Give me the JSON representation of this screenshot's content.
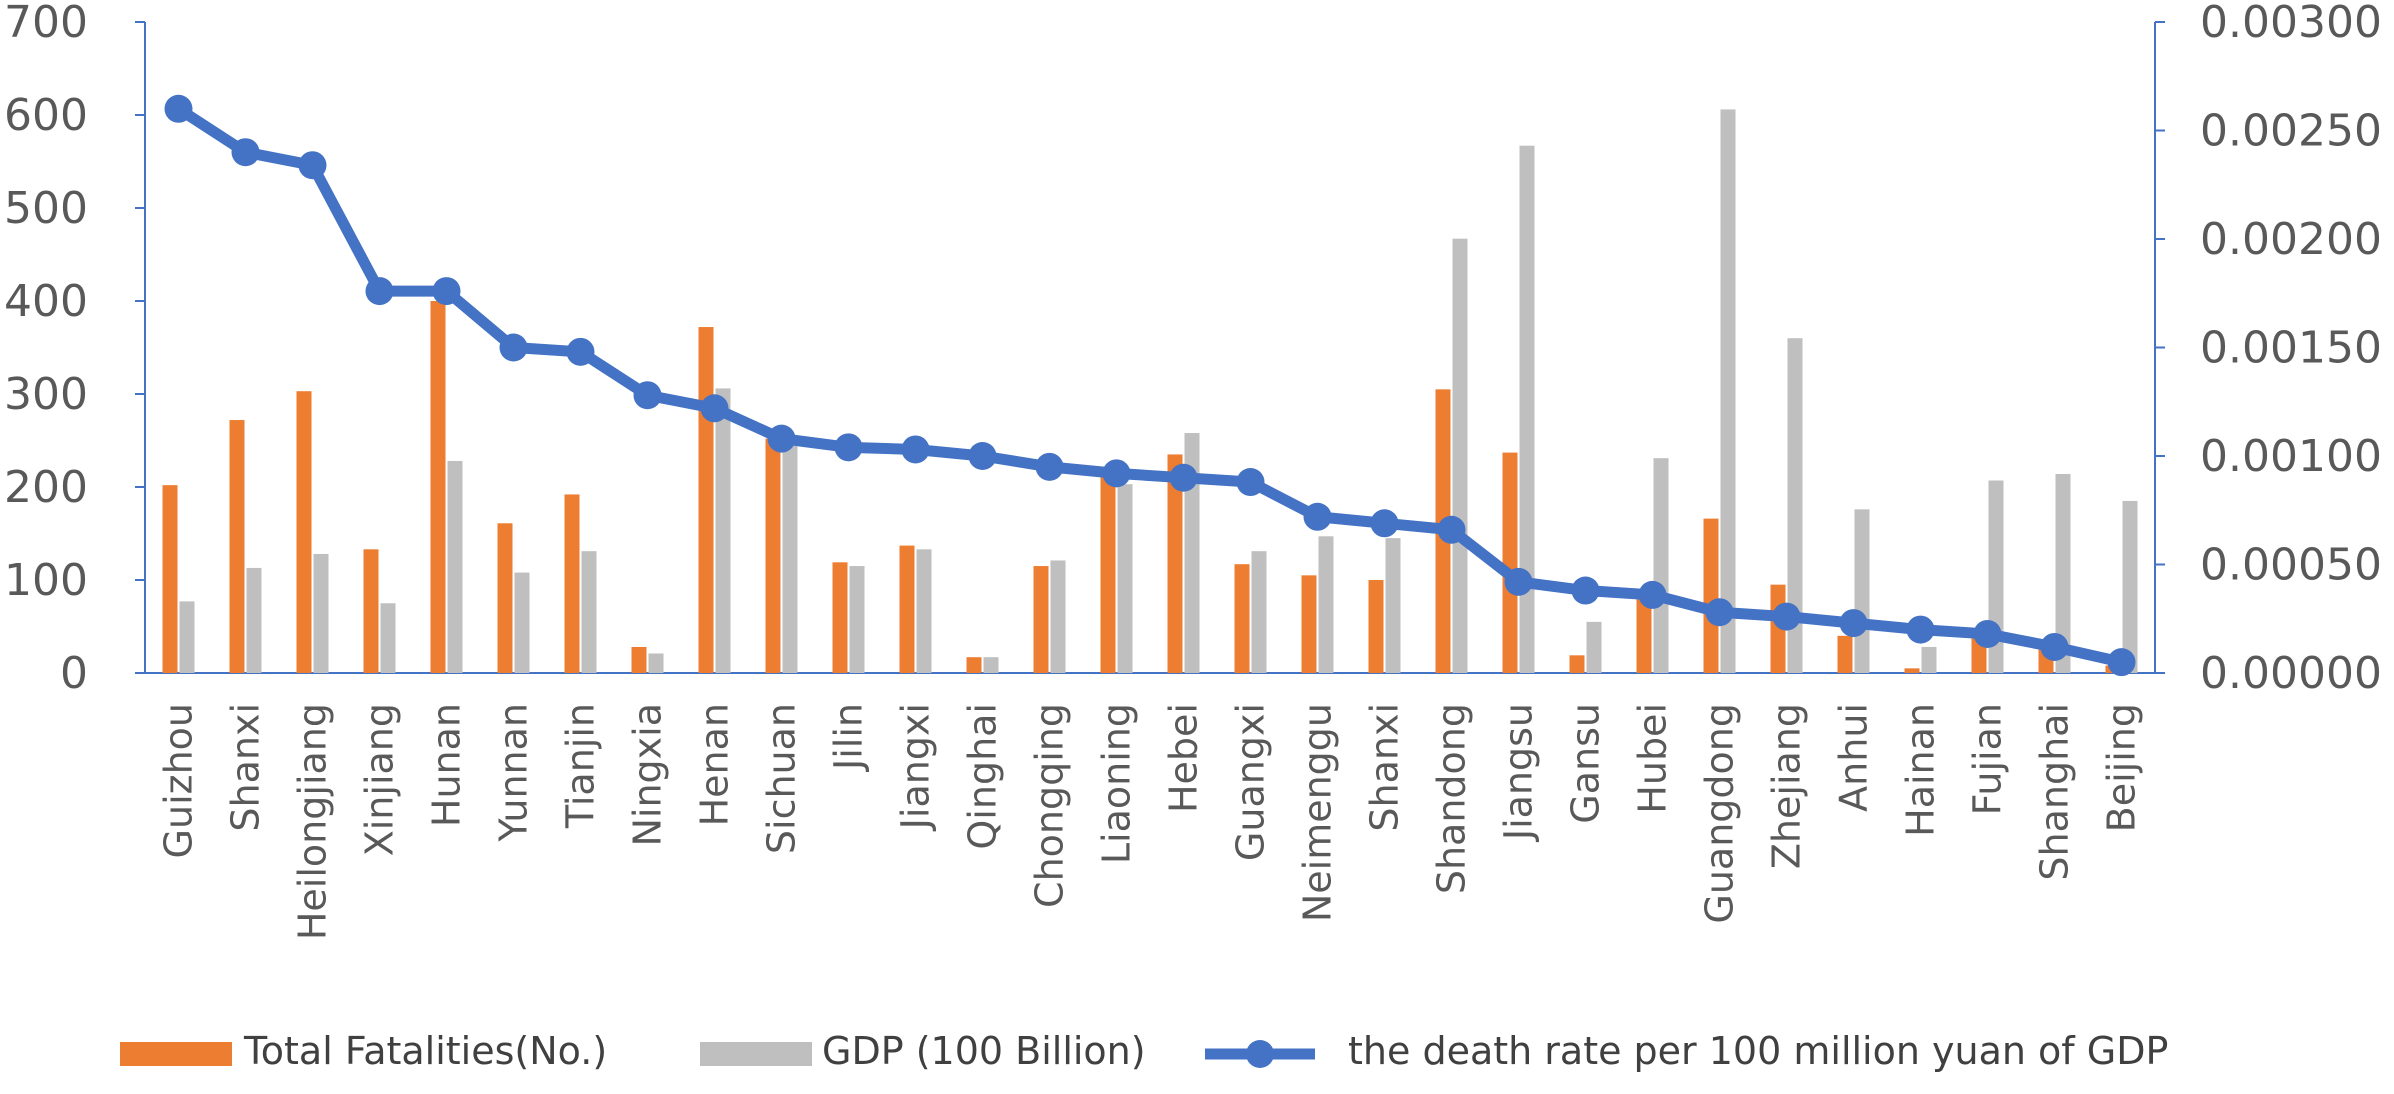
{
  "chart_data": {
    "type": "bar",
    "categories": [
      "Guizhou",
      "Shanxi",
      "Heilongjiang",
      "Xinjiang",
      "Hunan",
      "Yunnan",
      "Tianjin",
      "Ningxia",
      "Henan",
      "Sichuan",
      "Jilin",
      "Jiangxi",
      "Qinghai",
      "Chongqing",
      "Liaoning",
      "Hebei",
      "Guangxi",
      "Neimenggu",
      "Shanxi",
      "Shandong",
      "Jiangsu",
      "Gansu",
      "Hubei",
      "Guangdong",
      "Zhejiang",
      "Anhui",
      "Hainan",
      "Fujian",
      "Shanghai",
      "Beijing"
    ],
    "series": [
      {
        "name": "Total Fatalities(No.)",
        "type": "bar",
        "axis": "left",
        "color": "#ED7D31",
        "values": [
          202,
          272,
          303,
          133,
          400,
          161,
          192,
          28,
          372,
          252,
          119,
          137,
          17,
          115,
          212,
          235,
          117,
          105,
          100,
          305,
          237,
          19,
          88,
          166,
          95,
          40,
          5,
          40,
          30,
          8
        ]
      },
      {
        "name": "GDP (100 Billion)",
        "type": "bar",
        "axis": "left",
        "color": "#BFBFBF",
        "values": [
          77,
          113,
          128,
          75,
          228,
          108,
          131,
          21,
          306,
          244,
          115,
          133,
          17,
          121,
          203,
          258,
          131,
          147,
          145,
          467,
          567,
          55,
          231,
          606,
          360,
          176,
          28,
          207,
          214,
          185
        ]
      },
      {
        "name": "the death rate per 100 million yuan of GDP",
        "type": "line",
        "axis": "right",
        "color": "#4472C4",
        "values": [
          0.0026,
          0.0024,
          0.00234,
          0.00176,
          0.00176,
          0.0015,
          0.00148,
          0.00128,
          0.00122,
          0.00108,
          0.00104,
          0.00103,
          0.001,
          0.00095,
          0.00092,
          0.0009,
          0.00088,
          0.00072,
          0.00069,
          0.00066,
          0.00042,
          0.00038,
          0.00036,
          0.00028,
          0.00026,
          0.00023,
          0.0002,
          0.00018,
          0.00012,
          5e-05
        ]
      }
    ],
    "y_left": {
      "min": 0,
      "max": 700,
      "ticks": [
        "0",
        "100",
        "200",
        "300",
        "400",
        "500",
        "600",
        "700"
      ]
    },
    "y_right": {
      "min": 0,
      "max": 0.003,
      "ticks": [
        "0.00000",
        "0.00050",
        "0.00100",
        "0.00150",
        "0.00200",
        "0.00250",
        "0.00300"
      ]
    },
    "grid": false,
    "legend_position": "bottom"
  }
}
